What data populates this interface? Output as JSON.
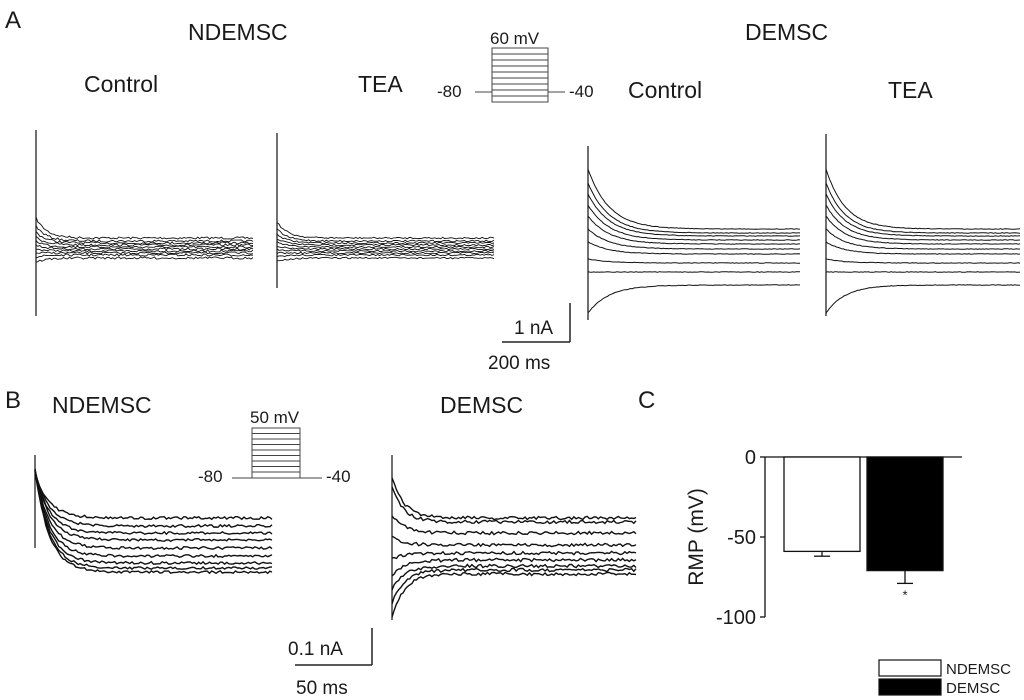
{
  "panel_a": {
    "letter": "A",
    "group_left": "NDEMSC",
    "group_right": "DEMSC",
    "control_label": "Control",
    "tea_label": "TEA",
    "protocol": {
      "step_label": "60 mV",
      "hold_label": "-80",
      "post_label": "-40"
    },
    "scalebar": {
      "current": "1 nA",
      "time": "200 ms"
    }
  },
  "panel_b": {
    "letter": "B",
    "group_left": "NDEMSC",
    "group_right": "DEMSC",
    "protocol": {
      "step_label": "50 mV",
      "hold_label": "-80",
      "post_label": "-40"
    },
    "scalebar": {
      "current": "0.1 nA",
      "time": "50 ms"
    }
  },
  "panel_c": {
    "letter": "C",
    "significance": "*"
  },
  "chart_data": [
    {
      "type": "bar",
      "categories": [
        "NDEMSC",
        "DEMSC"
      ],
      "values": [
        -59,
        -71
      ],
      "errors": [
        3,
        8
      ],
      "ylabel": "RMP (mV)",
      "ylim": [
        -100,
        0
      ],
      "yticks": [
        0,
        -50,
        -100
      ],
      "ytick_labels": [
        "0",
        "-50",
        "-100"
      ],
      "legend_position": "bottom-right",
      "colors": {
        "NDEMSC": "#ffffff",
        "DEMSC": "#000000"
      },
      "significance": "*"
    }
  ]
}
